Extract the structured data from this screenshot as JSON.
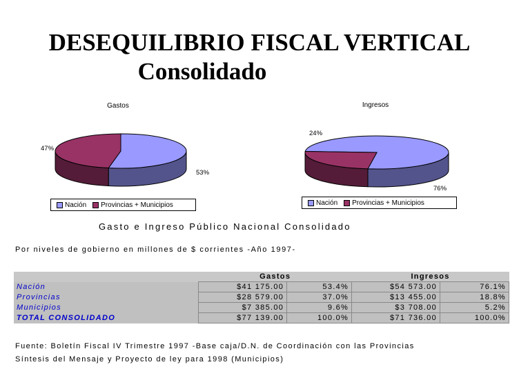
{
  "title_line1": "DESEQUILIBRIO FISCAL VERTICAL",
  "title_line2": "Consolidado",
  "chart_data": [
    {
      "type": "pie",
      "title": "Gastos",
      "slices": [
        {
          "label": "Nación",
          "value": 53,
          "pct_label": "53%",
          "color": "#9999ff"
        },
        {
          "label": "Provincias + Municipios",
          "value": 47,
          "pct_label": "47%",
          "color": "#993366"
        }
      ],
      "legend": "bottom"
    },
    {
      "type": "pie",
      "title": "Ingresos",
      "slices": [
        {
          "label": "Nación",
          "value": 76,
          "pct_label": "76%",
          "color": "#9999ff"
        },
        {
          "label": "Provincias + Municipios",
          "value": 24,
          "pct_label": "24%",
          "color": "#993366"
        }
      ],
      "legend": "bottom"
    }
  ],
  "section_title": "Gasto e Ingreso Público Nacional Consolidado",
  "subtitle": "Por niveles de gobierno en millones de $ corrientes -Año 1997-",
  "table": {
    "headers": [
      "Gastos",
      "Ingresos"
    ],
    "rows": [
      {
        "label": "Nación",
        "gasto": "$41 175.00",
        "gasto_pct": "53.4%",
        "ingreso": "$54 573.00",
        "ingreso_pct": "76.1%"
      },
      {
        "label": "Provincias",
        "gasto": "$28 579.00",
        "gasto_pct": "37.0%",
        "ingreso": "$13 455.00",
        "ingreso_pct": "18.8%"
      },
      {
        "label": "Municipios",
        "gasto": "$7 385.00",
        "gasto_pct": "9.6%",
        "ingreso": "$3 708.00",
        "ingreso_pct": "5.2%"
      },
      {
        "label": "TOTAL CONSOLIDADO",
        "gasto": "$77 139.00",
        "gasto_pct": "100.0%",
        "ingreso": "$71 736.00",
        "ingreso_pct": "100.0%"
      }
    ]
  },
  "source_line1": "Fuente: Boletín Fiscal IV Trimestre 1997 -Base caja/D.N. de Coordinación con las Provincias",
  "source_line2": "Síntesis del Mensaje y Proyecto de ley para 1998 (Municipios)"
}
